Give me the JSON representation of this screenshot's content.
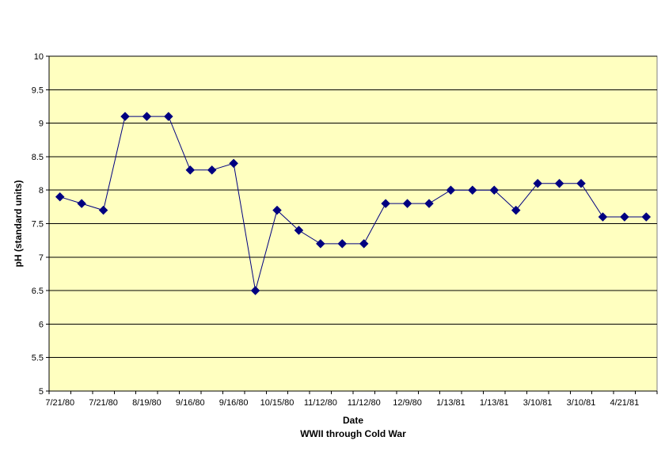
{
  "chart_data": {
    "type": "line",
    "xlabel": "Date",
    "subtitle": "WWII through Cold War",
    "ylabel": "pH (standard units)",
    "ylim": [
      5,
      10
    ],
    "y_ticks": [
      "5",
      "5.5",
      "6",
      "6.5",
      "7",
      "7.5",
      "8",
      "8.5",
      "9",
      "9.5",
      "10"
    ],
    "x_tick_labels": [
      "7/21/80",
      "7/21/80",
      "8/19/80",
      "9/16/80",
      "9/16/80",
      "10/15/80",
      "11/12/80",
      "11/12/80",
      "12/9/80",
      "1/13/81",
      "1/13/81",
      "3/10/81",
      "3/10/81",
      "4/21/81"
    ],
    "grid": true,
    "legend": "none",
    "colors": {
      "plot_background": "#ffffc0",
      "series": "#000080",
      "gridline": "#000000"
    },
    "series": [
      {
        "values": [
          7.9,
          7.8,
          7.7,
          9.1,
          9.1,
          9.1,
          8.3,
          8.3,
          8.4,
          6.5,
          7.7,
          7.4,
          7.2,
          7.2,
          7.2,
          7.8,
          7.8,
          7.8,
          8.0,
          8.0,
          8.0,
          7.7,
          8.1,
          8.1,
          8.1,
          7.6,
          7.6,
          7.6
        ]
      }
    ]
  }
}
